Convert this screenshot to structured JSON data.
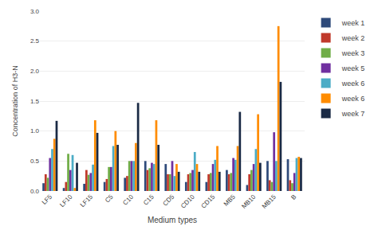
{
  "chart_data": {
    "type": "bar",
    "categories": [
      "LF5",
      "LF10",
      "LF15",
      "C5",
      "C10",
      "C15",
      "CD5",
      "CD10",
      "CD15",
      "MB5",
      "MB10",
      "MB15",
      "B"
    ],
    "series": [
      {
        "name": "week 1",
        "color": "#2E4A7A",
        "values": [
          0.13,
          0.05,
          0.12,
          0.15,
          0.22,
          0.5,
          0.45,
          0.15,
          0.15,
          0.35,
          0.1,
          0.5,
          0.53
        ]
      },
      {
        "name": "week 2",
        "color": "#C0392B",
        "values": [
          0.28,
          0.15,
          0.35,
          0.2,
          0.25,
          0.35,
          0.28,
          0.28,
          0.28,
          0.28,
          0.28,
          0.18,
          0.18
        ]
      },
      {
        "name": "week 3",
        "color": "#70AD47",
        "values": [
          0.22,
          0.62,
          0.27,
          0.4,
          0.5,
          0.38,
          0.28,
          0.3,
          0.3,
          0.3,
          0.35,
          0.15,
          0.13
        ]
      },
      {
        "name": "week 5",
        "color": "#7030A0",
        "values": [
          0.55,
          0.35,
          0.3,
          0.4,
          0.5,
          0.47,
          0.5,
          0.35,
          0.45,
          0.55,
          0.45,
          0.98,
          0.3
        ]
      },
      {
        "name": "week 6",
        "color": "#4BACC6",
        "values": [
          0.7,
          0.6,
          0.44,
          0.75,
          0.5,
          0.45,
          0.25,
          0.65,
          0.52,
          0.52,
          0.7,
          0.5,
          0.55
        ]
      },
      {
        "name": "week 6",
        "color": "#FF8C00",
        "values": [
          0.87,
          0.05,
          1.18,
          1.0,
          0.8,
          1.18,
          0.45,
          0.45,
          0.75,
          0.75,
          1.28,
          2.75,
          0.57
        ]
      },
      {
        "name": "week 7",
        "color": "#1a2a45",
        "values": [
          1.17,
          0.47,
          0.97,
          0.77,
          1.47,
          0.77,
          0.32,
          0.32,
          0.32,
          1.32,
          0.47,
          1.82,
          0.55
        ]
      }
    ],
    "xlabel": "Medium types",
    "ylabel": "Concentration of H3-N",
    "ylim": [
      0,
      3
    ],
    "yticks": [
      {
        "value": 0,
        "label": "0.0"
      },
      0.5,
      {
        "value": 1,
        "label": "1.0"
      },
      1.5,
      {
        "value": 2,
        "label": "2.0"
      },
      2.5,
      {
        "value": 3,
        "label": "3.0"
      }
    ],
    "grid": true,
    "legend": "right"
  }
}
